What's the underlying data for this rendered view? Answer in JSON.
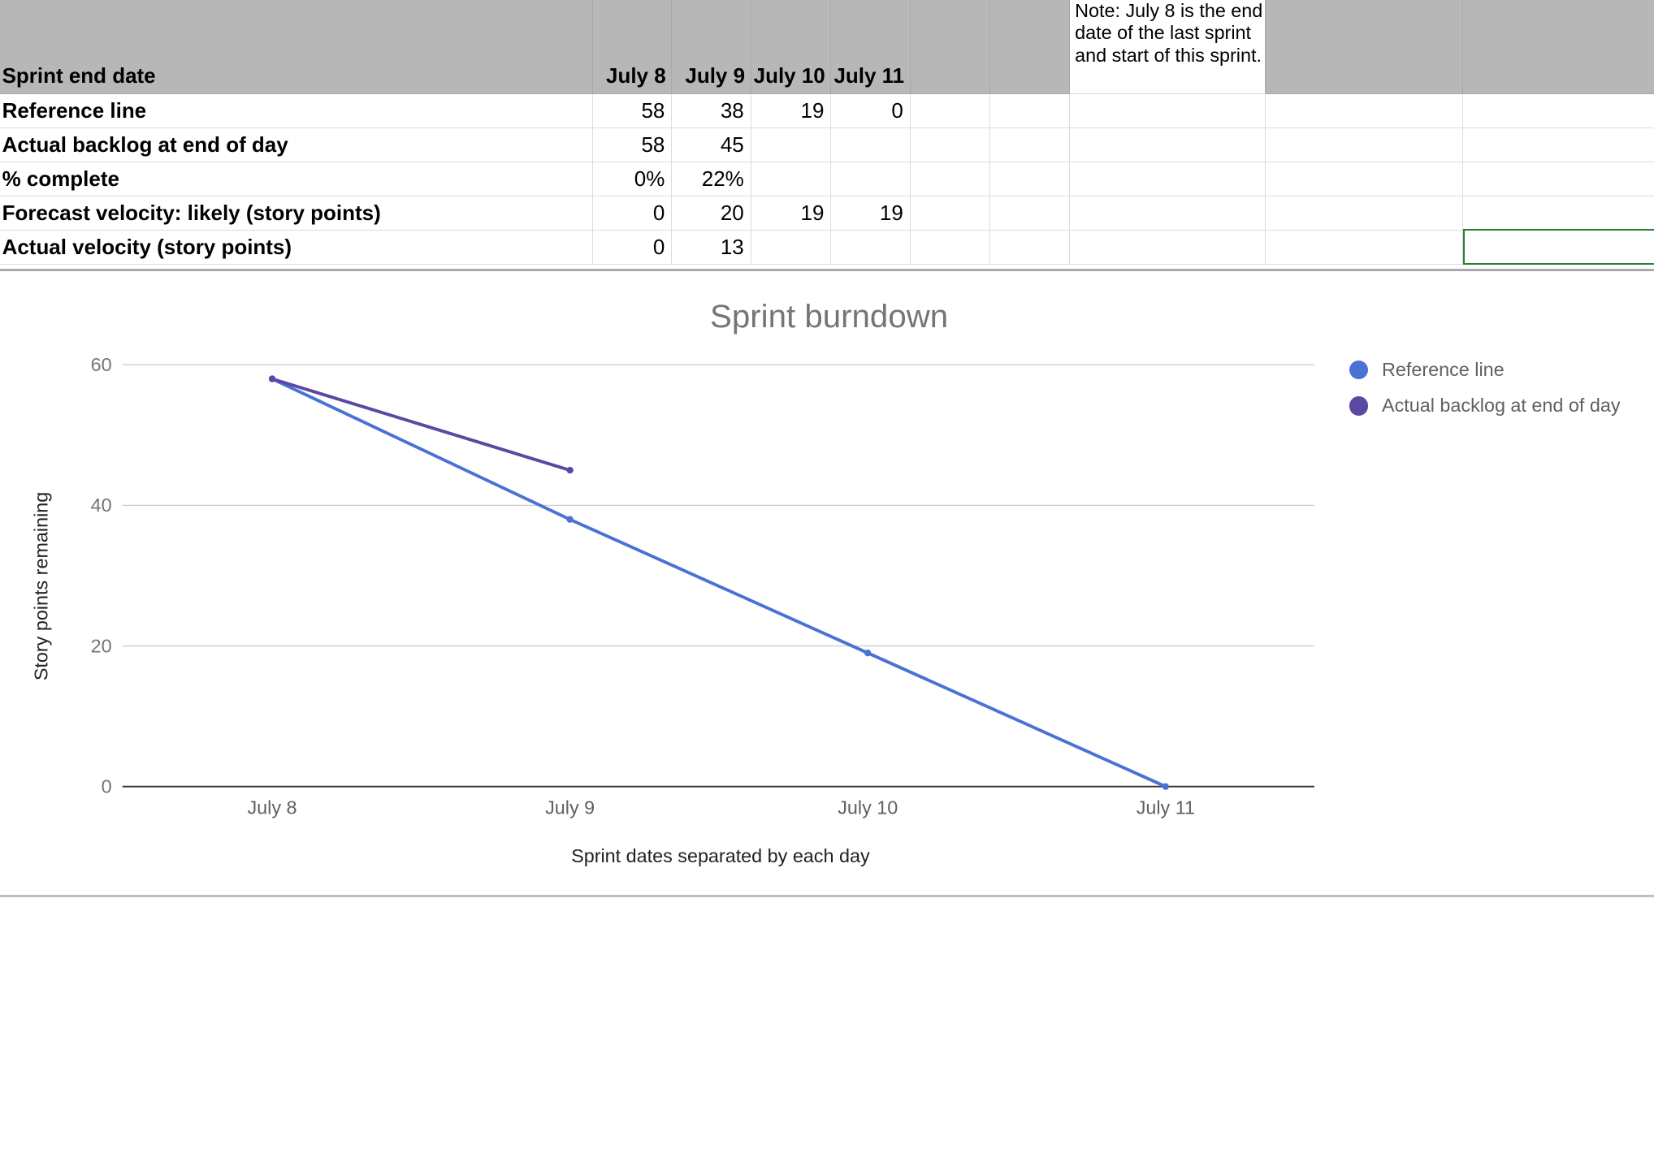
{
  "sheet": {
    "header": {
      "label": "Sprint end date",
      "dates": [
        "July 8",
        "July 9",
        "July 10",
        "July 11"
      ]
    },
    "note": "Note: July 8 is the end date of the last sprint and start of this sprint.",
    "rows": [
      {
        "label": "Reference line",
        "values": [
          "58",
          "38",
          "19",
          "0"
        ]
      },
      {
        "label": "Actual backlog at end of day",
        "values": [
          "58",
          "45",
          "",
          ""
        ]
      },
      {
        "label": "% complete",
        "values": [
          "0%",
          "22%",
          "",
          ""
        ]
      },
      {
        "label": "Forecast velocity: likely (story points)",
        "values": [
          "0",
          "20",
          "19",
          "19"
        ]
      },
      {
        "label": "Actual velocity (story points)",
        "values": [
          "0",
          "13",
          "",
          ""
        ]
      }
    ]
  },
  "chart_data": {
    "type": "line",
    "title": "Sprint burndown",
    "xlabel": "Sprint dates separated by each day",
    "ylabel": "Story points remaining",
    "categories": [
      "July 8",
      "July 9",
      "July 10",
      "July 11"
    ],
    "ylim": [
      0,
      60
    ],
    "yticks": [
      "0",
      "20",
      "40",
      "60"
    ],
    "grid": true,
    "legend_position": "right",
    "series": [
      {
        "name": "Reference line",
        "values": [
          58,
          38,
          19,
          0
        ],
        "color": "#4a72d4"
      },
      {
        "name": "Actual backlog at end of day",
        "values": [
          58,
          45,
          null,
          null
        ],
        "color": "#5b48a2"
      }
    ]
  }
}
